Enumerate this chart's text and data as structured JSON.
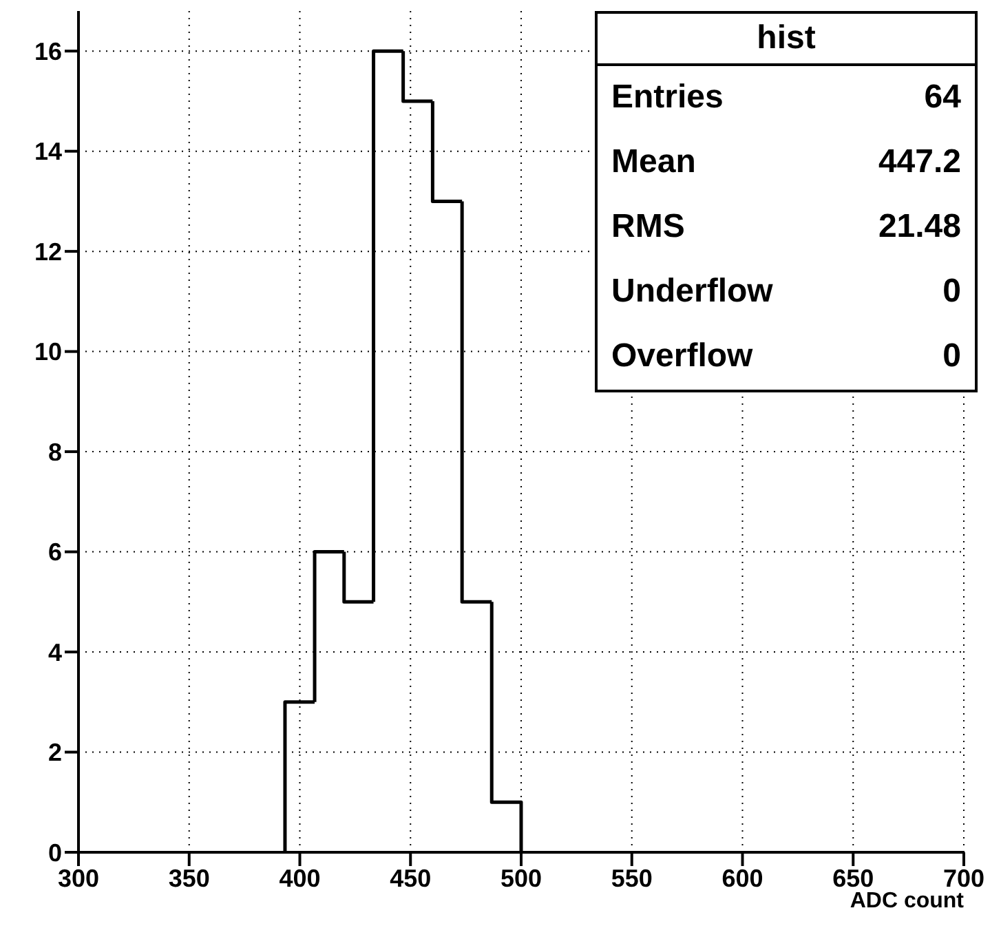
{
  "chart_data": {
    "type": "histogram",
    "title": "hist",
    "xlabel": "ADC count",
    "bins": [
      393.3,
      406.7,
      420,
      433.3,
      446.7,
      460,
      473.3,
      486.7,
      500
    ],
    "values": [
      3,
      6,
      5,
      16,
      15,
      13,
      5,
      1
    ],
    "color": "#000000",
    "xlim": [
      300,
      700
    ],
    "xticks": [
      300,
      350,
      400,
      450,
      500,
      550,
      600,
      650,
      700
    ],
    "ylim": [
      0,
      16.8
    ],
    "yticks": [
      0,
      2,
      4,
      6,
      8,
      10,
      12,
      14,
      16
    ],
    "grid": true,
    "annotations": [
      "Entries",
      "64",
      "Mean",
      "447.2",
      "RMS",
      "21.48",
      "Underflow",
      "0",
      "Overflow",
      "0"
    ]
  }
}
